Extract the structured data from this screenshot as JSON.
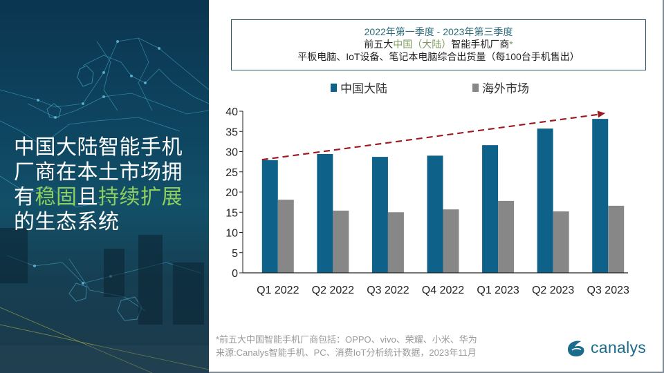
{
  "headline": {
    "line1": "中国大陆智能手机",
    "line2": "厂商在本土市场拥",
    "line3_pre": "有",
    "line3_hl1": "稳固",
    "line3_mid": "且",
    "line3_hl2": "持续扩展",
    "line4": "的生态系统"
  },
  "title_box": {
    "line1": "2022年第一季度 - 2023年第三季度",
    "line2_pre": "前五大",
    "line2_acc": "中国（大陆）",
    "line2_post": "智能手机厂商",
    "line2_star": "*",
    "line3": "平板电脑、IoT设备、笔记本电脑综合出货量（每100台手机售出）"
  },
  "chart_data": {
    "type": "bar",
    "title": "2022年第一季度 - 2023年第三季度 前五大中国（大陆）智能手机厂商* 平板电脑、IoT设备、笔记本电脑综合出货量（每100台手机售出）",
    "categories": [
      "Q1 2022",
      "Q2 2022",
      "Q3 2022",
      "Q4 2022",
      "Q1 2023",
      "Q2 2023",
      "Q3 2023"
    ],
    "series": [
      {
        "name": "中国大陆",
        "color": "#0e6189",
        "values": [
          27.9,
          29.4,
          28.7,
          29.0,
          31.6,
          35.7,
          38.1
        ]
      },
      {
        "name": "海外市场",
        "color": "#878787",
        "values": [
          18.1,
          15.4,
          15.0,
          15.7,
          17.8,
          15.2,
          16.6
        ]
      }
    ],
    "xlabel": "",
    "ylabel": "",
    "ylim": [
      0,
      40
    ],
    "yticks": [
      0,
      5,
      10,
      15,
      20,
      25,
      30,
      35,
      40
    ],
    "grid": false,
    "legend": "top-center",
    "annotations": [
      {
        "type": "trend-arrow",
        "style": "dashed",
        "color": "#9b1b24",
        "from": {
          "category": "Q1 2022",
          "y": 28
        },
        "to": {
          "category": "Q3 2023",
          "y": 39.5
        }
      }
    ]
  },
  "footnote": {
    "line1": "*前五大中国智能手机厂商包括：OPPO、vivo、荣耀、小米、华为",
    "line2": "来源:Canalys智能手机、PC、消费IoT分析统计数据，2023年11月"
  },
  "logo": {
    "text": "canalys",
    "color": "#1a6c8c"
  }
}
